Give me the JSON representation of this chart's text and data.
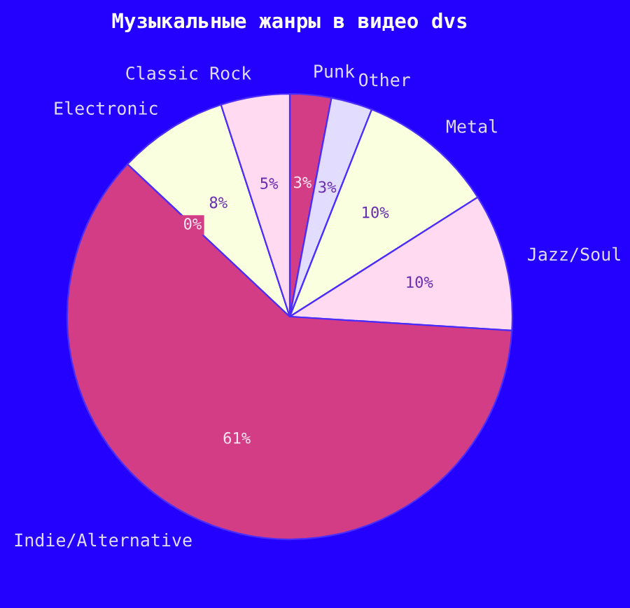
{
  "chart_data": {
    "type": "pie",
    "title": "Музыкальные жанры в видео dvs",
    "categories": [
      "Punk",
      "Other",
      "Metal",
      "Jazz/Soul",
      "Indie/Alternative",
      null,
      "Electronic",
      "Classic Rock"
    ],
    "values": [
      3,
      3,
      10,
      10,
      61,
      0,
      8,
      5
    ],
    "colors": [
      "#d33d85",
      "#e2dcff",
      "#f9ffdf",
      "#ffdaf0",
      "#d33d85",
      "#e2dcff",
      "#f9ffdf",
      "#ffdaf0"
    ],
    "value_labels": [
      "3%",
      "3%",
      "10%",
      "10%",
      "61%",
      "0%",
      "8%",
      "5%"
    ]
  }
}
